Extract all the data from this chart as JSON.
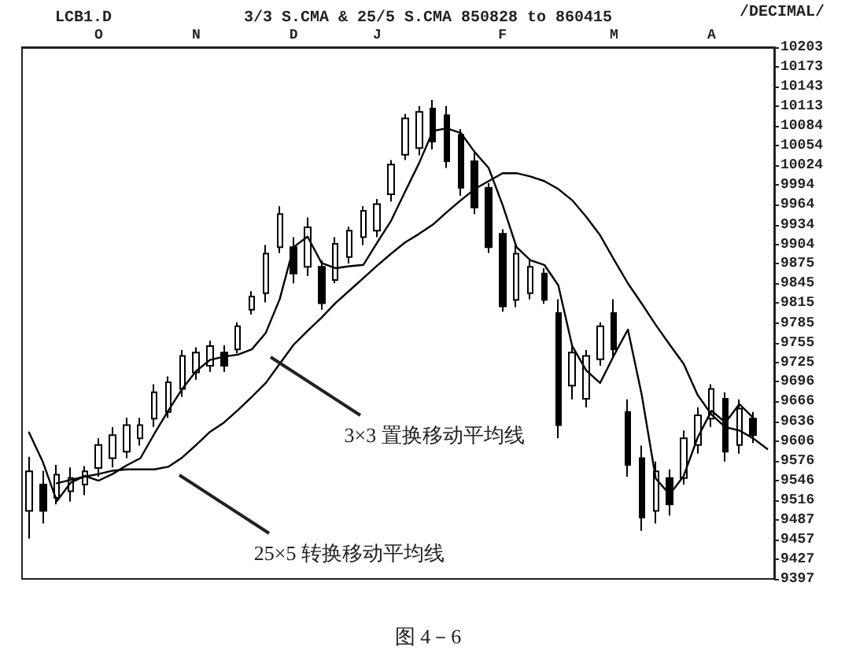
{
  "chart_data": {
    "type": "candlestick",
    "title": "LCB1.D",
    "subtitle": "3/3 S.CMA & 25/5 S.CMA 850828 to 860415",
    "color": "#000000",
    "categories": [
      null,
      null,
      null,
      null,
      null,
      "O",
      null,
      null,
      null,
      null,
      null,
      null,
      "N",
      null,
      null,
      null,
      null,
      null,
      null,
      "D",
      null,
      null,
      null,
      null,
      null,
      "J",
      null,
      null,
      null,
      null,
      null,
      null,
      null,
      null,
      "F",
      null,
      null,
      null,
      null,
      null,
      null,
      null,
      "M",
      null,
      null,
      null,
      null,
      null,
      null,
      "A",
      null,
      null,
      null,
      null
    ],
    "ohlc": [
      [
        9500,
        9582,
        9458,
        9560
      ],
      [
        9540,
        9561,
        9481,
        9500
      ],
      [
        9520,
        9570,
        9510,
        9555
      ],
      [
        9530,
        9566,
        9514,
        9550
      ],
      [
        9540,
        9568,
        9524,
        9560
      ],
      [
        9565,
        9610,
        9552,
        9600
      ],
      [
        9580,
        9627,
        9566,
        9615
      ],
      [
        9590,
        9641,
        9580,
        9630
      ],
      [
        9610,
        9641,
        9599,
        9630
      ],
      [
        9640,
        9692,
        9627,
        9680
      ],
      [
        9650,
        9704,
        9641,
        9695
      ],
      [
        9685,
        9744,
        9673,
        9735
      ],
      [
        9710,
        9748,
        9699,
        9740
      ],
      [
        9720,
        9758,
        9711,
        9750
      ],
      [
        9740,
        9751,
        9711,
        9720
      ],
      [
        9745,
        9786,
        9739,
        9780
      ],
      [
        9805,
        9833,
        9798,
        9825
      ],
      [
        9830,
        9903,
        9816,
        9890
      ],
      [
        9900,
        9962,
        9891,
        9950
      ],
      [
        9900,
        9915,
        9845,
        9860
      ],
      [
        9870,
        9945,
        9856,
        9930
      ],
      [
        9870,
        9880,
        9805,
        9815
      ],
      [
        9850,
        9915,
        9845,
        9905
      ],
      [
        9885,
        9931,
        9875,
        9925
      ],
      [
        9915,
        9962,
        9903,
        9955
      ],
      [
        9925,
        9973,
        9915,
        9965
      ],
      [
        9980,
        10032,
        9969,
        10025
      ],
      [
        10040,
        10102,
        10032,
        10095
      ],
      [
        10050,
        10114,
        10039,
        10105
      ],
      [
        10110,
        10123,
        10048,
        10060
      ],
      [
        10100,
        10114,
        10020,
        10030
      ],
      [
        10070,
        10079,
        9978,
        9990
      ],
      [
        10030,
        10044,
        9950,
        9960
      ],
      [
        9990,
        9997,
        9891,
        9900
      ],
      [
        9920,
        9927,
        9802,
        9810
      ],
      [
        9820,
        9903,
        9809,
        9890
      ],
      [
        9830,
        9880,
        9821,
        9870
      ],
      [
        9860,
        9868,
        9814,
        9820
      ],
      [
        9800,
        9821,
        9610,
        9630
      ],
      [
        9690,
        9751,
        9669,
        9740
      ],
      [
        9670,
        9744,
        9657,
        9735
      ],
      [
        9730,
        9786,
        9720,
        9780
      ],
      [
        9800,
        9821,
        9734,
        9745
      ],
      [
        9650,
        9669,
        9552,
        9570
      ],
      [
        9580,
        9599,
        9470,
        9490
      ],
      [
        9500,
        9575,
        9481,
        9560
      ],
      [
        9550,
        9563,
        9493,
        9510
      ],
      [
        9550,
        9622,
        9540,
        9610
      ],
      [
        9600,
        9657,
        9587,
        9645
      ],
      [
        9640,
        9692,
        9627,
        9685
      ],
      [
        9670,
        9680,
        9575,
        9590
      ],
      [
        9600,
        9669,
        9587,
        9655
      ],
      [
        9640,
        9650,
        9603,
        9615
      ],
      null
    ],
    "series": [
      {
        "type": "line",
        "color": "#000000",
        "values": [
          9619,
          9574,
          9515,
          9543,
          9553,
          9546,
          9556,
          9569,
          9580,
          9617,
          9652,
          9685,
          9712,
          9729,
          9734,
          9737,
          9745,
          9770,
          9821,
          9900,
          9916,
          9876,
          9868,
          9871,
          9873,
          9907,
          9940,
          9984,
          10027,
          10076,
          10080,
          10073,
          10044,
          10020,
          9964,
          9900,
          9880,
          9873,
          9842,
          9750,
          9713,
          9694,
          9736,
          9775,
          9675,
          9549,
          9525,
          9553,
          9611,
          9652,
          9634,
          9662,
          9641,
          null
        ]
      },
      {
        "type": "line",
        "color": "#000000",
        "values": [
          null,
          null,
          9542,
          9547,
          9552,
          9556,
          9561,
          9563,
          9563,
          9563,
          9567,
          9581,
          9600,
          9620,
          9634,
          9653,
          9673,
          9694,
          9723,
          9752,
          9773,
          9793,
          9815,
          9834,
          9853,
          9872,
          9890,
          9907,
          9920,
          9934,
          9953,
          9971,
          9988,
          10000,
          10012,
          10012,
          10007,
          10000,
          9988,
          9971,
          9946,
          9918,
          9881,
          9845,
          9814,
          9782,
          9752,
          9723,
          9676,
          9646,
          9627,
          9622,
          9610,
          9594
        ]
      }
    ],
    "ylim": [
      9397,
      10203
    ],
    "yticks": [
      10203,
      10173,
      10143,
      10113,
      10084,
      10054,
      10024,
      9994,
      9964,
      9934,
      9904,
      9875,
      9845,
      9815,
      9785,
      9755,
      9725,
      9696,
      9666,
      9636,
      9606,
      9576,
      9546,
      9516,
      9487,
      9457,
      9427,
      9397
    ],
    "marker": "none",
    "line_style": "solid",
    "annotations": [
      "/DECIMAL/",
      "图 4－6",
      "3×3 置换移动平均线",
      "25×5 转换移动平均线"
    ]
  }
}
